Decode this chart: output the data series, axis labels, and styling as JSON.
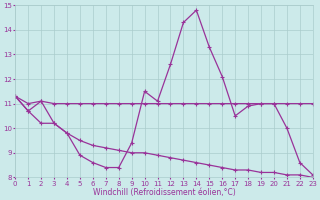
{
  "xlabel": "Windchill (Refroidissement éolien,°C)",
  "bg_color": "#cceaea",
  "line_color": "#993399",
  "grid_color": "#aacccc",
  "x": [
    0,
    1,
    2,
    3,
    4,
    5,
    6,
    7,
    8,
    9,
    10,
    11,
    12,
    13,
    14,
    15,
    16,
    17,
    18,
    19,
    20,
    21,
    22,
    23
  ],
  "y_temp": [
    11.3,
    11.0,
    11.1,
    11.0,
    11.0,
    11.0,
    11.0,
    11.0,
    11.0,
    11.0,
    11.0,
    11.0,
    11.0,
    11.0,
    11.0,
    11.0,
    11.0,
    11.0,
    11.0,
    11.0,
    11.0,
    11.0,
    11.0,
    11.0
  ],
  "y_wc_peak": [
    11.3,
    10.7,
    11.1,
    10.2,
    9.8,
    8.9,
    8.6,
    8.4,
    8.4,
    9.4,
    11.5,
    11.1,
    12.6,
    14.3,
    14.8,
    13.3,
    12.1,
    10.5,
    10.9,
    11.0,
    11.0,
    10.0,
    8.6,
    8.1
  ],
  "y_wc_low": [
    11.3,
    10.7,
    10.2,
    10.2,
    9.8,
    9.5,
    9.3,
    9.2,
    9.1,
    9.0,
    9.0,
    8.9,
    8.8,
    8.7,
    8.6,
    8.5,
    8.4,
    8.3,
    8.3,
    8.2,
    8.2,
    8.1,
    8.1,
    8.0
  ],
  "ylim": [
    8,
    15
  ],
  "xlim": [
    0,
    23
  ],
  "yticks": [
    8,
    9,
    10,
    11,
    12,
    13,
    14,
    15
  ],
  "xticks": [
    0,
    1,
    2,
    3,
    4,
    5,
    6,
    7,
    8,
    9,
    10,
    11,
    12,
    13,
    14,
    15,
    16,
    17,
    18,
    19,
    20,
    21,
    22,
    23
  ]
}
